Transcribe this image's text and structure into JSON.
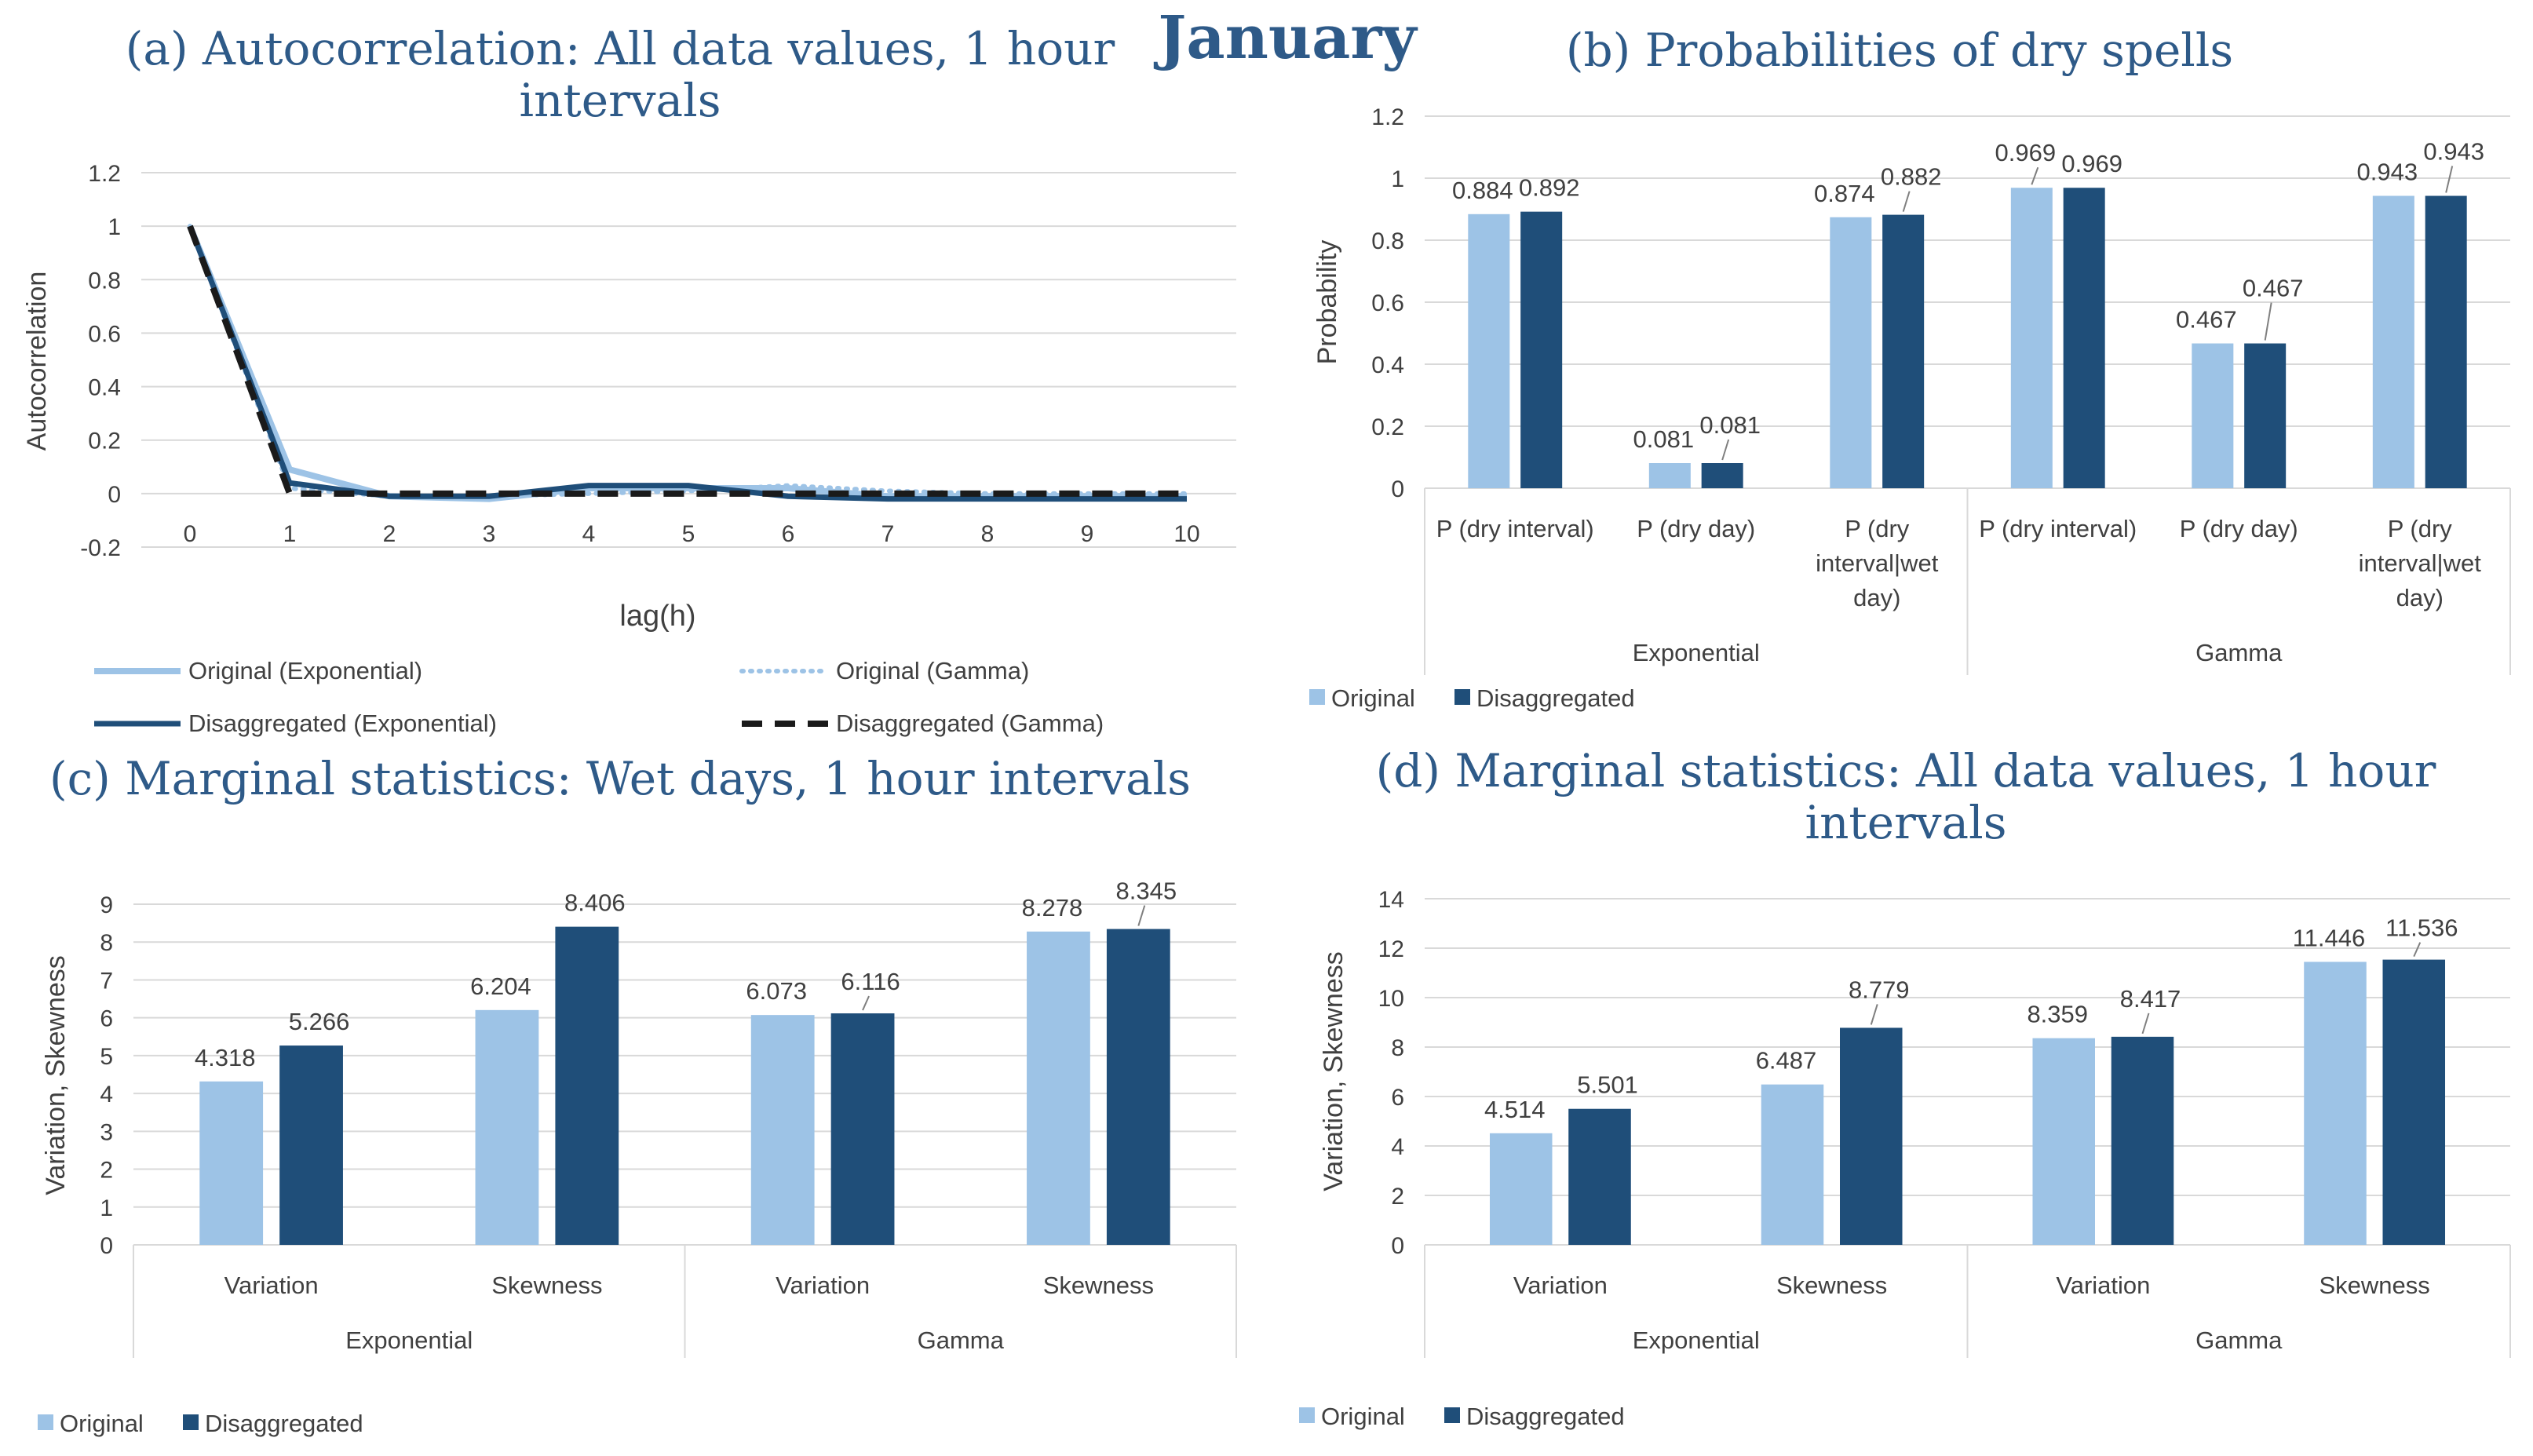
{
  "main_title": "January",
  "colors": {
    "original": "#9dc3e6",
    "disaggregated": "#1f4e79",
    "title": "#2e5a88",
    "grid": "#d9d9d9",
    "text": "#404040",
    "gamma_disagg_line": "#1a1a1a"
  },
  "chart_data": [
    {
      "id": "a",
      "type": "line",
      "title_lines": [
        "(a) Autocorrelation: All data values, 1 hour",
        "intervals"
      ],
      "xlabel": "lag(h)",
      "ylabel": "Autocorrelation",
      "x": [
        0,
        1,
        2,
        3,
        4,
        5,
        6,
        7,
        8,
        9,
        10
      ],
      "x_tick_labels": [
        "0",
        "1",
        "2",
        "3",
        "4",
        "5",
        "6",
        "7",
        "8",
        "9",
        "10"
      ],
      "ylim": [
        -0.2,
        1.2
      ],
      "y_ticks": [
        -0.2,
        0,
        0.2,
        0.4,
        0.6,
        0.8,
        1,
        1.2
      ],
      "y_tick_labels": [
        "-0.2",
        "0",
        "0.2",
        "0.4",
        "0.6",
        "0.8",
        "1",
        "1.2"
      ],
      "series": [
        {
          "name": "Original (Exponential)",
          "style": "light-solid",
          "values": [
            1,
            0.09,
            -0.01,
            -0.02,
            0.02,
            0.02,
            0.02,
            -0.01,
            -0.01,
            -0.01,
            -0.01
          ]
        },
        {
          "name": "Original (Gamma)",
          "style": "light-dotted",
          "values": [
            1,
            0.02,
            -0.01,
            -0.01,
            0.0,
            0.01,
            0.03,
            0.01,
            0.0,
            0.0,
            0.0
          ]
        },
        {
          "name": "Disaggregated (Exponential)",
          "style": "dark-solid",
          "values": [
            1,
            0.04,
            -0.01,
            -0.01,
            0.03,
            0.03,
            -0.01,
            -0.02,
            -0.02,
            -0.02,
            -0.02
          ]
        },
        {
          "name": "Disaggregated (Gamma)",
          "style": "black-dashed",
          "values": [
            1,
            0.0,
            0.0,
            0.0,
            0.0,
            0.0,
            0.0,
            0.0,
            0.0,
            0.0,
            0.0
          ]
        }
      ]
    },
    {
      "id": "b",
      "type": "bar",
      "title_lines": [
        "(b) Probabilities of dry spells"
      ],
      "ylabel": "Probability",
      "ylim": [
        0,
        1.2
      ],
      "y_ticks": [
        0,
        0.2,
        0.4,
        0.6,
        0.8,
        1,
        1.2
      ],
      "y_tick_labels": [
        "0",
        "0.2",
        "0.4",
        "0.6",
        "0.8",
        "1",
        "1.2"
      ],
      "groups": [
        {
          "name": "Exponential",
          "categories": [
            [
              "P (dry interval)"
            ],
            [
              "P (dry day)"
            ],
            [
              "P (dry",
              "interval|wet",
              "day)"
            ]
          ]
        },
        {
          "name": "Gamma",
          "categories": [
            [
              "P (dry interval)"
            ],
            [
              "P (dry day)"
            ],
            [
              "P (dry",
              "interval|wet",
              "day)"
            ]
          ]
        }
      ],
      "series": [
        {
          "name": "Original",
          "values": [
            0.884,
            0.081,
            0.874,
            0.969,
            0.467,
            0.943
          ],
          "labels": [
            "0.884",
            "0.081",
            "0.874",
            "0.969",
            "0.467",
            "0.943"
          ]
        },
        {
          "name": "Disaggregated",
          "values": [
            0.892,
            0.081,
            0.882,
            0.969,
            0.467,
            0.943
          ],
          "labels": [
            "0.892",
            "0.081",
            "0.882",
            "0.969",
            "0.467",
            "0.943"
          ]
        }
      ]
    },
    {
      "id": "c",
      "type": "bar",
      "title_lines": [
        "(c) Marginal statistics: Wet days, 1 hour intervals"
      ],
      "ylabel": "Variation, Skewness",
      "ylim": [
        0,
        9
      ],
      "y_ticks": [
        0,
        1,
        2,
        3,
        4,
        5,
        6,
        7,
        8,
        9
      ],
      "y_tick_labels": [
        "0",
        "1",
        "2",
        "3",
        "4",
        "5",
        "6",
        "7",
        "8",
        "9"
      ],
      "groups": [
        {
          "name": "Exponential",
          "categories": [
            [
              "Variation"
            ],
            [
              "Skewness"
            ]
          ]
        },
        {
          "name": "Gamma",
          "categories": [
            [
              "Variation"
            ],
            [
              "Skewness"
            ]
          ]
        }
      ],
      "series": [
        {
          "name": "Original",
          "values": [
            4.318,
            6.204,
            6.073,
            8.278
          ],
          "labels": [
            "4.318",
            "6.204",
            "6.073",
            "8.278"
          ]
        },
        {
          "name": "Disaggregated",
          "values": [
            5.266,
            8.406,
            6.116,
            8.345
          ],
          "labels": [
            "5.266",
            "8.406",
            "6.116",
            "8.345"
          ]
        }
      ]
    },
    {
      "id": "d",
      "type": "bar",
      "title_lines": [
        "(d) Marginal statistics: All data values, 1 hour",
        "intervals"
      ],
      "ylabel": "Variation, Skewness",
      "ylim": [
        0,
        14
      ],
      "y_ticks": [
        0,
        2,
        4,
        6,
        8,
        10,
        12,
        14
      ],
      "y_tick_labels": [
        "0",
        "2",
        "4",
        "6",
        "8",
        "10",
        "12",
        "14"
      ],
      "groups": [
        {
          "name": "Exponential",
          "categories": [
            [
              "Variation"
            ],
            [
              "Skewness"
            ]
          ]
        },
        {
          "name": "Gamma",
          "categories": [
            [
              "Variation"
            ],
            [
              "Skewness"
            ]
          ]
        }
      ],
      "series": [
        {
          "name": "Original",
          "values": [
            4.514,
            6.487,
            8.359,
            11.446
          ],
          "labels": [
            "4.514",
            "6.487",
            "8.359",
            "11.446"
          ]
        },
        {
          "name": "Disaggregated",
          "values": [
            5.501,
            8.779,
            8.417,
            11.536
          ],
          "labels": [
            "5.501",
            "8.779",
            "8.417",
            "11.536"
          ]
        }
      ]
    }
  ]
}
